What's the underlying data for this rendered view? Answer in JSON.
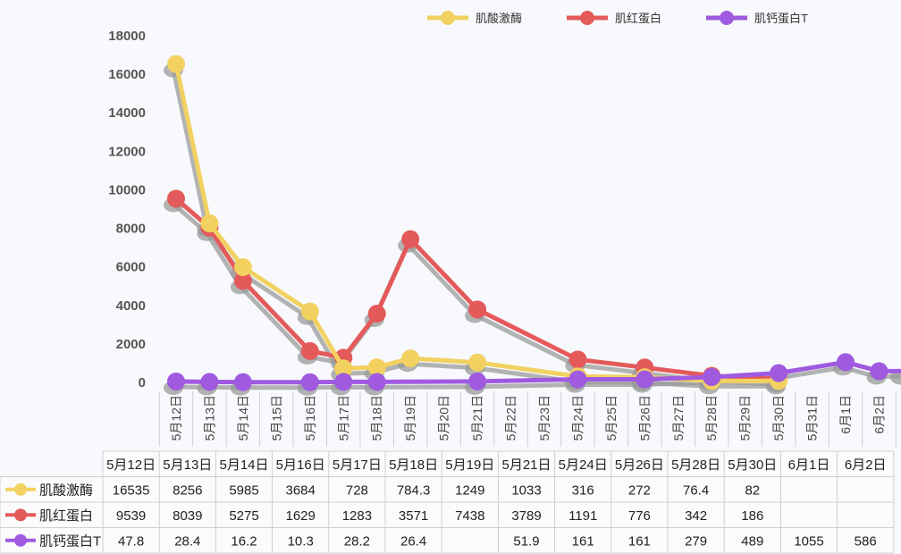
{
  "chart_data": {
    "type": "line",
    "ylim": [
      0,
      18000
    ],
    "yticks": [
      0,
      2000,
      4000,
      6000,
      8000,
      10000,
      12000,
      14000,
      16000,
      18000
    ],
    "grid": false,
    "legend_position": "top-right",
    "x_axis_labels": [
      "5月12日",
      "5月13日",
      "5月14日",
      "5月15日",
      "5月16日",
      "5月17日",
      "5月18日",
      "5月19日",
      "5月20日",
      "5月21日",
      "5月22日",
      "5月23日",
      "5月24日",
      "5月25日",
      "5月26日",
      "5月27日",
      "5月28日",
      "5月29日",
      "5月30日",
      "5月31日",
      "6月1日",
      "6月2日"
    ],
    "table_columns": [
      "5月12日",
      "5月13日",
      "5月14日",
      "5月16日",
      "5月17日",
      "5月18日",
      "5月19日",
      "5月21日",
      "5月24日",
      "5月26日",
      "5月28日",
      "5月30日",
      "6月1日",
      "6月2日"
    ],
    "series": [
      {
        "name": "肌酸激酶",
        "color": "#f2d160",
        "values": [
          "16535",
          "8256",
          "5985",
          "3684",
          "728",
          "784.3",
          "1249",
          "1033",
          "316",
          "272",
          "76.4",
          "82",
          "",
          ""
        ]
      },
      {
        "name": "肌红蛋白",
        "color": "#e45a5a",
        "values": [
          "9539",
          "8039",
          "5275",
          "1629",
          "1283",
          "3571",
          "7438",
          "3789",
          "1191",
          "776",
          "342",
          "186",
          "",
          ""
        ]
      },
      {
        "name": "肌钙蛋白T",
        "color": "#9f5ae0",
        "values": [
          "47.8",
          "28.4",
          "16.2",
          "10.3",
          "28.2",
          "26.4",
          "",
          "51.9",
          "161",
          "161",
          "279",
          "489",
          "1055",
          "586"
        ]
      }
    ]
  }
}
